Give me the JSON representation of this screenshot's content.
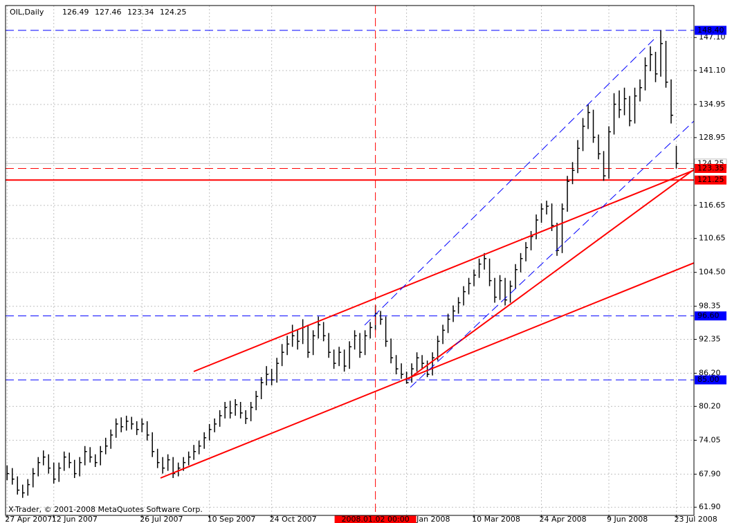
{
  "chart_data": {
    "type": "ohlc",
    "title": "OIL,Daily",
    "last_bar": {
      "open": 126.49,
      "high": 127.46,
      "low": 123.34,
      "close": 124.25
    },
    "copyright": "X-Trader, © 2001-2008 MetaQuotes Software Corp.",
    "color": "#000000",
    "grid": true,
    "high": [
      69.5,
      69,
      67.5,
      66,
      67,
      69,
      71,
      72.2,
      71.5,
      70,
      70,
      72,
      71.8,
      70.5,
      71,
      73,
      72.8,
      71.5,
      73,
      74.5,
      76,
      78,
      78.2,
      78.5,
      78.3,
      77.5,
      78,
      77.5,
      75.5,
      72.5,
      71,
      71.5,
      71,
      70,
      71,
      72,
      73.2,
      74,
      75.5,
      77,
      78,
      79.5,
      81,
      81.2,
      81.5,
      81,
      79.5,
      81,
      83,
      85.5,
      87.5,
      87,
      89,
      91.5,
      93,
      95,
      94,
      96,
      95,
      94,
      96.5,
      95.5,
      93.5,
      90.5,
      91,
      90.5,
      92,
      94,
      93.5,
      94,
      95.5,
      98.5,
      97.5,
      96.5,
      92.5,
      89.5,
      88,
      86.5,
      88,
      90,
      89.5,
      88.5,
      90,
      93,
      95,
      97,
      98.5,
      100,
      102,
      103.5,
      105,
      107,
      108,
      107,
      103.5,
      104,
      103.5,
      103,
      106,
      108,
      110,
      112,
      115,
      117,
      117.5,
      117,
      113.5,
      117,
      122,
      124.5,
      128.5,
      132.5,
      135,
      134,
      129.5,
      126.5,
      131,
      137,
      137.5,
      138,
      136.5,
      138,
      139.5,
      143.5,
      145.5,
      144.5,
      148.4,
      146.5,
      139.5,
      127.46
    ],
    "low": [
      66.8,
      66,
      64.2,
      63.6,
      64,
      65.5,
      67.5,
      69.5,
      68,
      66.2,
      66.5,
      68.5,
      69,
      67.2,
      67.5,
      69.5,
      70,
      69.2,
      69.5,
      71.5,
      72.5,
      74.5,
      75.5,
      75.8,
      76,
      75,
      75.5,
      74,
      71,
      69,
      68,
      68.5,
      67.2,
      67.5,
      68.5,
      69.5,
      70.5,
      71.5,
      72.5,
      74,
      75.5,
      76.5,
      78,
      78,
      78.5,
      78,
      77,
      77.5,
      79.5,
      81.5,
      84,
      84,
      84.5,
      87.5,
      89.5,
      91,
      90.5,
      91.5,
      89,
      89.5,
      92.5,
      92,
      89,
      87,
      87.5,
      86.5,
      87,
      90.5,
      89,
      89.5,
      92.5,
      94,
      95,
      91,
      88,
      86,
      85.2,
      84.3,
      84.5,
      86.5,
      87,
      85.5,
      85.8,
      88.5,
      91.5,
      93.5,
      95.5,
      97,
      98.5,
      100.5,
      102,
      103.5,
      105,
      102,
      99,
      99.5,
      98.5,
      99,
      101.5,
      104.5,
      106.5,
      108.5,
      110.5,
      113.5,
      115,
      112,
      107.5,
      108,
      115.5,
      120.5,
      122.5,
      126.5,
      130.5,
      128,
      125,
      121.1,
      121.5,
      129.5,
      132.5,
      133,
      131,
      131.5,
      135.5,
      137.5,
      141,
      139,
      140,
      138,
      131.5,
      123.34
    ],
    "close": [
      68,
      67,
      65,
      64.5,
      66,
      68,
      70,
      71,
      69,
      67,
      69,
      71,
      70,
      68,
      70,
      72,
      71,
      70,
      72,
      73,
      75,
      77,
      76.5,
      77.5,
      77,
      76,
      77,
      75,
      72,
      70,
      69,
      70.5,
      68,
      69,
      70,
      71,
      72,
      73,
      74.5,
      76,
      77,
      78.5,
      80,
      79,
      80.5,
      79,
      78,
      80,
      82,
      84.5,
      86,
      85,
      88,
      90,
      91.5,
      93,
      92,
      94.5,
      90,
      93,
      95,
      93,
      90,
      88,
      90,
      87.5,
      91,
      93,
      90,
      93,
      94.5,
      97,
      96,
      92,
      89,
      87,
      86,
      84.5,
      87,
      89,
      88,
      86,
      89,
      92,
      94,
      96,
      97.5,
      99,
      101,
      102.5,
      104,
      106,
      107,
      103,
      100,
      103,
      99.5,
      102,
      105,
      107,
      109,
      111,
      114,
      116,
      116.5,
      113,
      108.5,
      116,
      121,
      123,
      127,
      131,
      133.5,
      129,
      126,
      122,
      130,
      135,
      134,
      136,
      132,
      136.5,
      138,
      142,
      144,
      140.5,
      146,
      139,
      133,
      124.25
    ],
    "xlim": [
      -0.3,
      132.4
    ],
    "xticks": [
      {
        "value": 0,
        "label": "27 Apr 2007"
      },
      {
        "value": 9,
        "label": "12 Jun 2007"
      },
      {
        "value": 26,
        "label": "26 Jul 2007"
      },
      {
        "value": 39,
        "label": "10 Sep 2007"
      },
      {
        "value": 51,
        "label": "24 Oct 2007"
      },
      {
        "value": 77,
        "label": "24 Jan 2008"
      },
      {
        "value": 90,
        "label": "10 Mar 2008"
      },
      {
        "value": 103,
        "label": "24 Apr 2008"
      },
      {
        "value": 116,
        "label": "9 Jun 2008"
      },
      {
        "value": 129,
        "label": "23 Jul 2008"
      }
    ],
    "ylim": [
      60.42,
      152.9
    ],
    "yticks": [
      {
        "value": 147.1,
        "label": "147.10"
      },
      {
        "value": 141.1,
        "label": "141.10"
      },
      134.95,
      128.95,
      116.65,
      {
        "value": 110.65,
        "label": "110.65"
      },
      {
        "value": 104.5,
        "label": "104.50"
      },
      98.35,
      92.35,
      {
        "value": 86.2,
        "label": "86.20"
      },
      {
        "value": 80.2,
        "label": "80.20"
      },
      74.05,
      {
        "value": 67.9,
        "label": "67.90"
      },
      {
        "value": 61.9,
        "label": "61.90"
      }
    ],
    "price_lines": [
      {
        "value": 148.4,
        "label": "148.40",
        "color": "#0000ff",
        "style": "dashed"
      },
      {
        "value": 124.25,
        "label": "124.25",
        "color": "#c0c0c0",
        "style": "solid"
      },
      {
        "value": 123.35,
        "label": "123.35",
        "color": "#ff0000",
        "style": "dashed"
      },
      {
        "value": 121.25,
        "label": "121.25",
        "color": "#ff0000",
        "style": "solid"
      },
      {
        "value": 96.6,
        "label": "96.60",
        "color": "#0000ff",
        "style": "dashed"
      },
      {
        "value": 85,
        "label": "85.00",
        "color": "#0000ff",
        "style": "dashed"
      }
    ],
    "cursor": {
      "value": 71,
      "label": "2008.01.02 00:00",
      "color": "#ff0000"
    }
  }
}
